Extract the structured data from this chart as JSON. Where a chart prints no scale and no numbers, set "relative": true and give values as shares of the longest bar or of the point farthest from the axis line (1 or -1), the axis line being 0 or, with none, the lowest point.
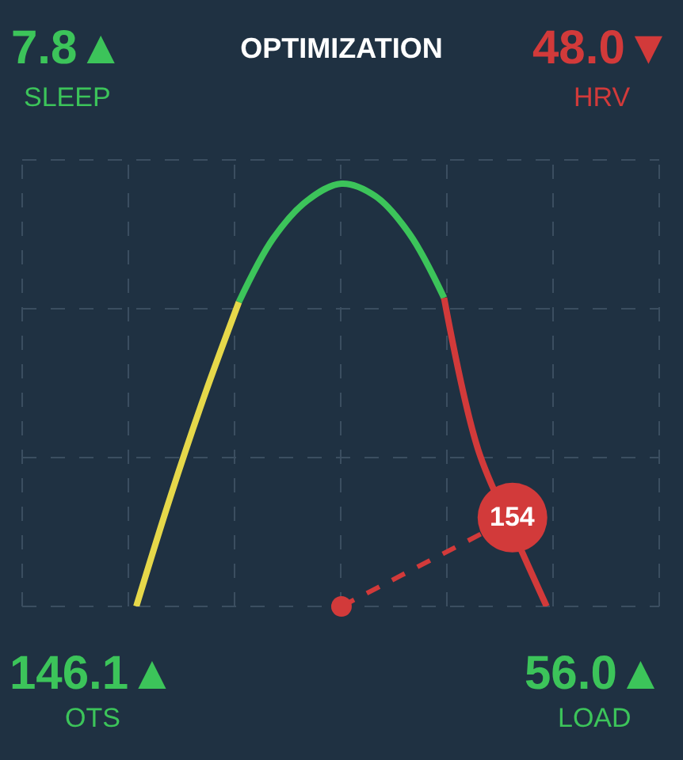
{
  "chart_data": {
    "type": "line",
    "title": "OPTIMIZATION",
    "relative": true,
    "grid": true,
    "categories": [
      null,
      null,
      null,
      null,
      null,
      null,
      null,
      null,
      null,
      null,
      null,
      null,
      null
    ],
    "series": [
      {
        "color": "#e6d84a",
        "values": [
          0,
          0.26,
          0.5,
          0.72,
          null,
          null,
          null,
          null,
          null,
          null,
          null,
          null,
          null
        ]
      },
      {
        "color": "#3cc45a",
        "values": [
          null,
          null,
          null,
          0.72,
          0.87,
          0.96,
          1.0,
          0.97,
          0.88,
          0.73,
          null,
          null,
          null
        ]
      },
      {
        "color": "#d23a3a",
        "values": [
          null,
          null,
          null,
          null,
          null,
          null,
          null,
          null,
          null,
          0.73,
          0.37,
          0.18,
          0
        ]
      },
      {
        "color": "#d23a3a",
        "line_style": "dashed",
        "marker": "circle",
        "values": [
          null,
          null,
          null,
          null,
          null,
          null,
          0,
          null,
          null,
          null,
          null,
          0.21,
          null
        ]
      }
    ],
    "annotations": [
      "7.8▲",
      "SLEEP",
      "48.0▼",
      "HRV",
      "146.1▲",
      "OTS",
      "56.0▲",
      "LOAD",
      "154"
    ]
  }
}
